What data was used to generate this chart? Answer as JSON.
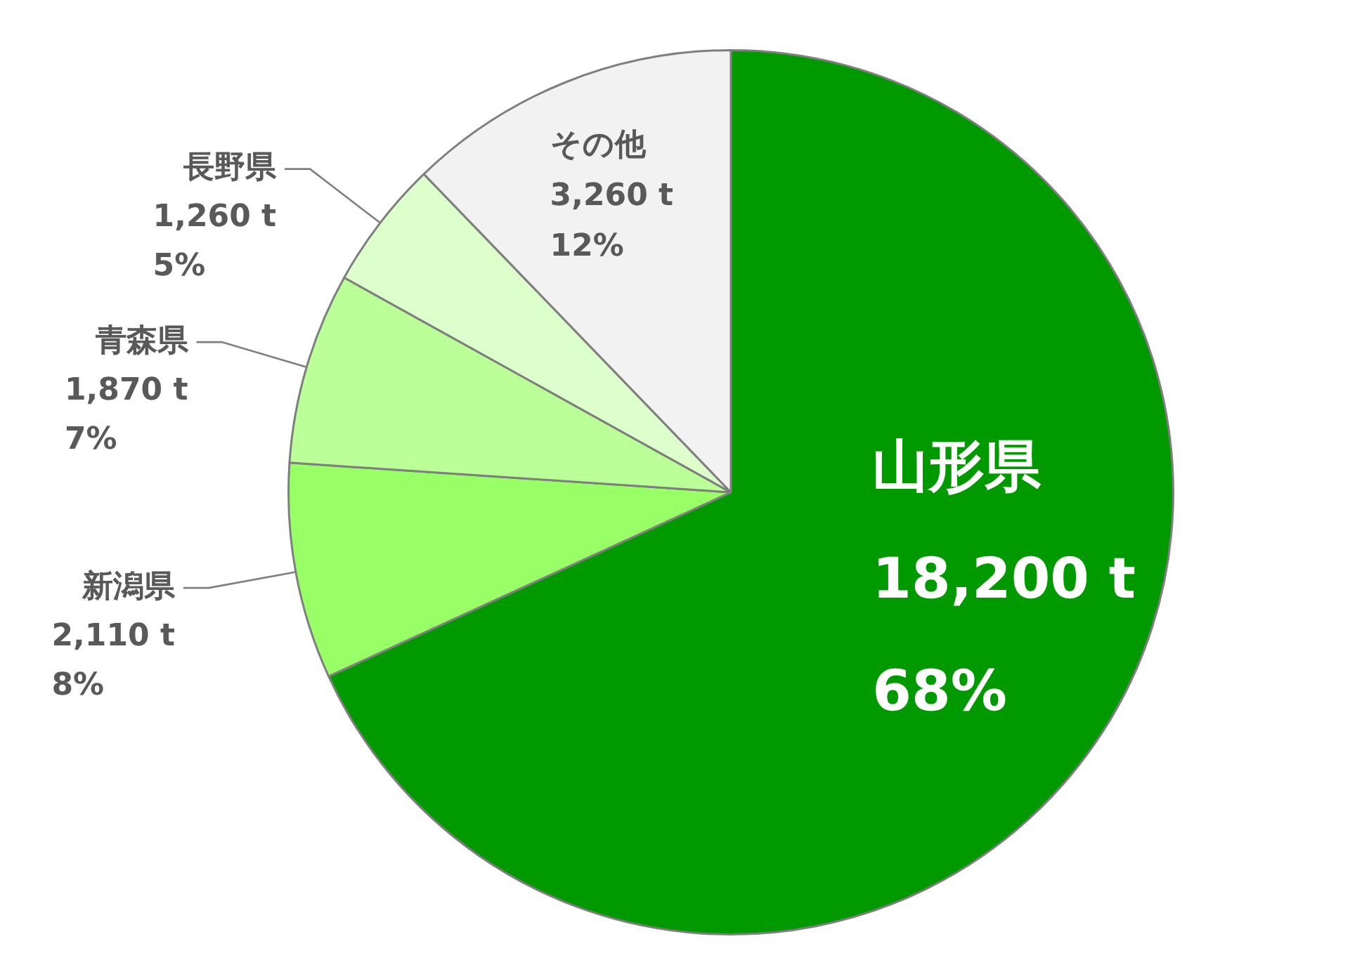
{
  "chart_data": {
    "type": "pie",
    "categories": [
      "山形県",
      "新潟県",
      "青森県",
      "長野県",
      "その他"
    ],
    "values": [
      18200,
      2110,
      1870,
      1260,
      3260
    ],
    "value_labels": [
      "18,200 t\n68%",
      "2,110 t\n8%",
      "1,870 t\n7%",
      "1,260 t\n5%",
      "3,260 t\n12%"
    ],
    "colors": [
      "#009900",
      "#99ff66",
      "#bbff99",
      "#ddffcc",
      "#f2f2f2"
    ],
    "legend": false
  }
}
